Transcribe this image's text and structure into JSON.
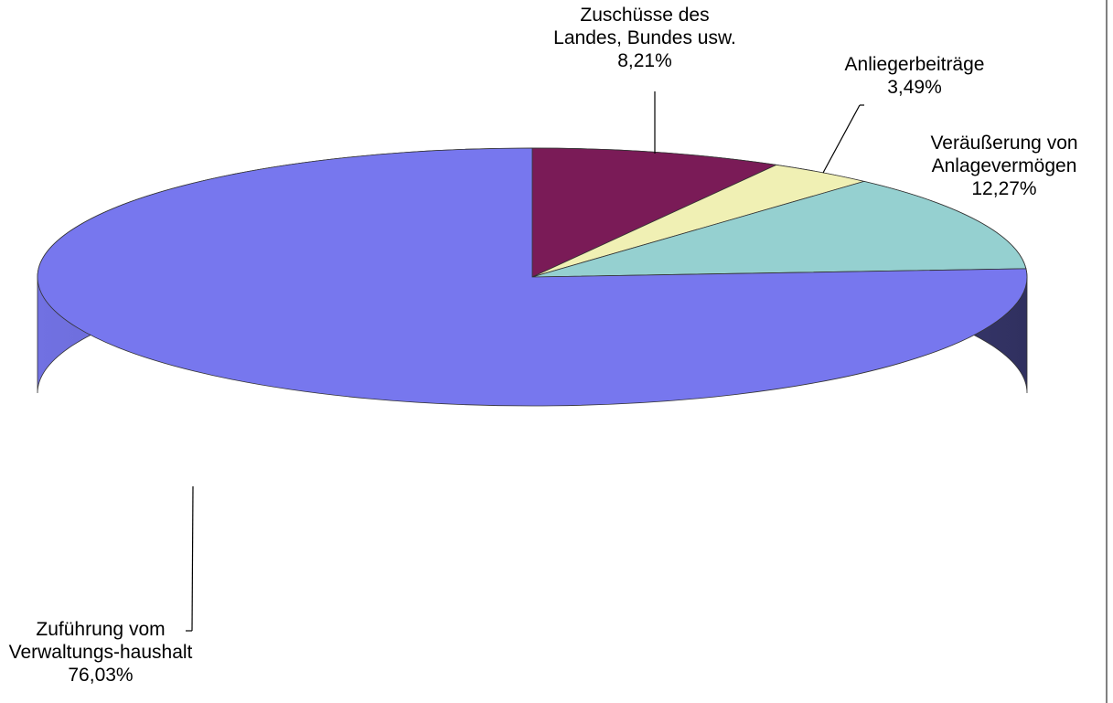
{
  "chart_data": {
    "type": "pie3d",
    "categories": [
      "Zuschüsse des Landes, Bundes usw.",
      "Anliegerbeiträge",
      "Veräußerung von Anlagevermögen",
      "Zuführung vom Verwaltungs-haushalt"
    ],
    "values": [
      8.21,
      3.49,
      12.27,
      76.03
    ],
    "value_labels": [
      "8,21%",
      "3,49%",
      "12,27%",
      "76,03%"
    ],
    "colors": [
      "#7a1b57",
      "#f0f0b4",
      "#95d0d0",
      "#7777ee"
    ]
  }
}
